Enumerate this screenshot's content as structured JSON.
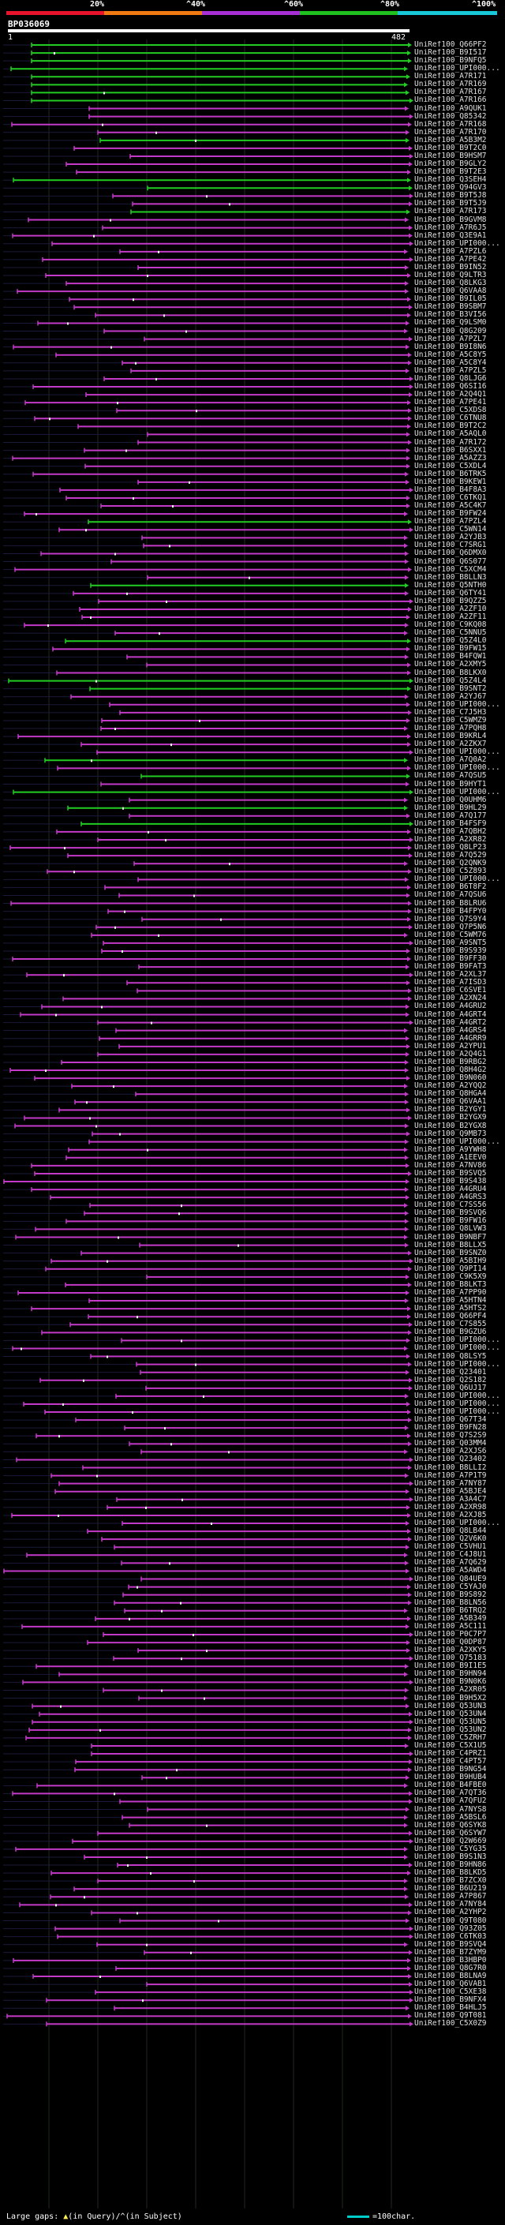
{
  "legend": {
    "segments": [
      {
        "label": "20%",
        "color": "#e8142c"
      },
      {
        "label": "^40%",
        "color": "#f07b12"
      },
      {
        "label": "^60%",
        "color": "#a82ed6"
      },
      {
        "label": "^80%",
        "color": "#20c020"
      },
      {
        "label": "^100%",
        "color": "#18c8d8"
      }
    ]
  },
  "query": {
    "id": "BP036069",
    "start": "1",
    "end": "482"
  },
  "colors": {
    "green": "#22cc22",
    "magenta": "#c23ac7",
    "frame": "#1a1a3a",
    "gap": "#8a2a8a",
    "marker": "#ffffff",
    "grid": "#1f2a1f"
  },
  "hits": [
    "UniRef100_Q66PF2",
    "UniRef100_B9I517",
    "UniRef100_B9NFQ5",
    "UniRef100_UPI000...",
    "UniRef100_A7R171",
    "UniRef100_A7R169",
    "UniRef100_A7R167",
    "UniRef100_A7R166",
    "UniRef100_A9QUK1",
    "UniRef100_Q85342",
    "UniRef100_A7R168",
    "UniRef100_A7R170",
    "UniRef100_A5B3M2",
    "UniRef100_B9T2C0",
    "UniRef100_B9HSM7",
    "UniRef100_B9GLY2",
    "UniRef100_B9T2E3",
    "UniRef100_Q3SEH4",
    "UniRef100_Q94GV3",
    "UniRef100_B9T5J8",
    "UniRef100_B9T5J9",
    "UniRef100_A7R173",
    "UniRef100_B9GVM8",
    "UniRef100_A7R6J5",
    "UniRef100_Q3E9A1",
    "UniRef100_UPI000...",
    "UniRef100_A7PZL6",
    "UniRef100_A7PE42",
    "UniRef100_B9IN52",
    "UniRef100_Q9LTR3",
    "UniRef100_Q8LKG3",
    "UniRef100_Q6VAA8",
    "UniRef100_B9IL05",
    "UniRef100_B9SBM7",
    "UniRef100_B3VI56",
    "UniRef100_Q9LSM0",
    "UniRef100_Q8G209",
    "UniRef100_A7PZL7",
    "UniRef100_B9I8N6",
    "UniRef100_A5C8Y5",
    "UniRef100_A5C8Y4",
    "UniRef100_A7PZL5",
    "UniRef100_Q8LJG6",
    "UniRef100_Q6SI16",
    "UniRef100_A2Q4Q1",
    "UniRef100_A7PE41",
    "UniRef100_C5XDS8",
    "UniRef100_C6TNU8",
    "UniRef100_B9T2C2",
    "UniRef100_A5AQL0",
    "UniRef100_A7R172",
    "UniRef100_B6SXX1",
    "UniRef100_A5AZZ3",
    "UniRef100_C5XDL4",
    "UniRef100_B6TRK5",
    "UniRef100_B9KEW1",
    "UniRef100_B4F8A3",
    "UniRef100_C6TKQ1",
    "UniRef100_A5C4K7",
    "UniRef100_B9FW24",
    "UniRef100_A7PZL4",
    "UniRef100_C5WN14",
    "UniRef100_A2YJB3",
    "UniRef100_C7SRG1",
    "UniRef100_Q6DMX0",
    "UniRef100_Q6S077",
    "UniRef100_C5XCM4",
    "UniRef100_B8LLN3",
    "UniRef100_Q5NTH0",
    "UniRef100_Q6TY41",
    "UniRef100_B9QZZ5",
    "UniRef100_A2ZF10",
    "UniRef100_A2ZF11",
    "UniRef100_C9KQ08",
    "UniRef100_C5NNU5",
    "UniRef100_Q5Z4L0",
    "UniRef100_B9FW15",
    "UniRef100_B4FQW1",
    "UniRef100_A2XMY5",
    "UniRef100_B8LKX0",
    "UniRef100_Q5Z4L4",
    "UniRef100_B9SNT2",
    "UniRef100_A2YJ67",
    "UniRef100_UPI000...",
    "UniRef100_C7J5H3",
    "UniRef100_C5WMZ9",
    "UniRef100_A7PQH8",
    "UniRef100_B9KRL4",
    "UniRef100_A2ZKX7",
    "UniRef100_UPI000...",
    "UniRef100_A7Q0A2",
    "UniRef100_UPI000...",
    "UniRef100_A7QSU5",
    "UniRef100_B9HYT1",
    "UniRef100_UPI000...",
    "UniRef100_Q0UHM6",
    "UniRef100_B9HL29",
    "UniRef100_A7Q177",
    "UniRef100_B4FSF9",
    "UniRef100_A7QBH2",
    "UniRef100_A2XR82",
    "UniRef100_Q8LP23",
    "UniRef100_A7Q529",
    "UniRef100_Q2QNK9",
    "UniRef100_C5Z893",
    "UniRef100_UPI000...",
    "UniRef100_B6T8F2",
    "UniRef100_A7QSU6",
    "UniRef100_B8LRU6",
    "UniRef100_B4FPY0",
    "UniRef100_Q7S9Y4",
    "UniRef100_Q7P5N6",
    "UniRef100_C5WM76",
    "UniRef100_A9SNT5",
    "UniRef100_B9S939",
    "UniRef100_B9FF30",
    "UniRef100_B9FAT3",
    "UniRef100_A2XL37",
    "UniRef100_A7ISD3",
    "UniRef100_C6SVE1",
    "UniRef100_A2XN24",
    "UniRef100_A4GRU2",
    "UniRef100_A4GRT4",
    "UniRef100_A4GRT2",
    "UniRef100_A4GRS4",
    "UniRef100_A4GRR9",
    "UniRef100_A2YPU1",
    "UniRef100_A2Q4G1",
    "UniRef100_B9RBG2",
    "UniRef100_Q8H4G2",
    "UniRef100_B9N060",
    "UniRef100_A2YQQ2",
    "UniRef100_Q8HGA4",
    "UniRef100_Q6VAA1",
    "UniRef100_B2YGY1",
    "UniRef100_B2YGX9",
    "UniRef100_B2YGX8",
    "UniRef100_Q9MB73",
    "UniRef100_UPI000...",
    "UniRef100_A9YWH8",
    "UniRef100_A1EEV0",
    "UniRef100_A7NV86",
    "UniRef100_B9SVQ5",
    "UniRef100_B9S438",
    "UniRef100_A4GRU4",
    "UniRef100_A4GRS3",
    "UniRef100_C7SS56",
    "UniRef100_B9SVQ6",
    "UniRef100_B9FW16",
    "UniRef100_Q8LVW3",
    "UniRef100_B9NBF7",
    "UniRef100_B8LLX5",
    "UniRef100_B9SNZ0",
    "UniRef100_A5BIH9",
    "UniRef100_Q9PI14",
    "UniRef100_C9K5X9",
    "UniRef100_B8LKT3",
    "UniRef100_A7PP90",
    "UniRef100_A5HTN4",
    "UniRef100_A5HTS2",
    "UniRef100_Q66PF4",
    "UniRef100_C7S855",
    "UniRef100_B9GZU6",
    "UniRef100_UPI000...",
    "UniRef100_UPI000...",
    "UniRef100_Q8LSY5",
    "UniRef100_UPI000...",
    "UniRef100_Q23401",
    "UniRef100_Q2S182",
    "UniRef100_Q6UJ17",
    "UniRef100_UPI000...",
    "UniRef100_UPI000...",
    "UniRef100_UPI000...",
    "UniRef100_Q67T34",
    "UniRef100_B9FN28",
    "UniRef100_Q7S2S9",
    "UniRef100_Q03MM4",
    "UniRef100_A2XJS6",
    "UniRef100_Q23402",
    "UniRef100_B8LLI2",
    "UniRef100_A7P1T9",
    "UniRef100_A7NY87",
    "UniRef100_A5BJE4",
    "UniRef100_A3A4C7",
    "UniRef100_A2XR98",
    "UniRef100_A2XJ85",
    "UniRef100_UPI000...",
    "UniRef100_Q8LB44",
    "UniRef100_Q2V6K0",
    "UniRef100_C5VHU1",
    "UniRef100_C4J8U1",
    "UniRef100_A7Q629",
    "UniRef100_A5AWD4",
    "UniRef100_Q84UE9",
    "UniRef100_C5YAJ0",
    "UniRef100_B9S892",
    "UniRef100_B8LN56",
    "UniRef100_B6TRQ2",
    "UniRef100_A5B349",
    "UniRef100_A5C111",
    "UniRef100_P0C7P7",
    "UniRef100_Q0DP87",
    "UniRef100_A2XKY5",
    "UniRef100_Q75183",
    "UniRef100_B9I1E5",
    "UniRef100_B9HN94",
    "UniRef100_B9N0K6",
    "UniRef100_A2XR05",
    "UniRef100_B9H5X2",
    "UniRef100_Q53UN3",
    "UniRef100_Q53UN4",
    "UniRef100_Q53UN5",
    "UniRef100_Q53UN2",
    "UniRef100_C5ZRH7",
    "UniRef100_C5X1U5",
    "UniRef100_C4PRZ1",
    "UniRef100_C4PT57",
    "UniRef100_B9NG54",
    "UniRef100_B9HUB4",
    "UniRef100_B4FBE0",
    "UniRef100_A7QT36",
    "UniRef100_A7QFU2",
    "UniRef100_A7NYS8",
    "UniRef100_A5BSL6",
    "UniRef100_Q6SYK8",
    "UniRef100_Q6SYW7",
    "UniRef100_Q2W669",
    "UniRef100_C5YG35",
    "UniRef100_B9S1N3",
    "UniRef100_B9HN86",
    "UniRef100_B8LKD5",
    "UniRef100_B7ZCX0",
    "UniRef100_B6U219",
    "UniRef100_A7P867",
    "UniRef100_A7NY84",
    "UniRef100_A2YHP2",
    "UniRef100_Q9T080",
    "UniRef100_Q93Z05",
    "UniRef100_C6TK03",
    "UniRef100_B9SVQ4",
    "UniRef100_B7ZYM9",
    "UniRef100_B3HBP0",
    "UniRef100_Q8G7R0",
    "UniRef100_B8LNA9",
    "UniRef100_Q6VAB1",
    "UniRef100_C5XE38",
    "UniRef100_B9NFX4",
    "UniRef100_B4HLJ5",
    "UniRef100_Q9T081",
    "UniRef100_C5X0Z9"
  ],
  "footer": {
    "large_gaps_label": "Large gaps:",
    "large_gaps_query": "(in Query)/",
    "large_gaps_subject": "(in Subject)",
    "scale_label": "=100char."
  }
}
